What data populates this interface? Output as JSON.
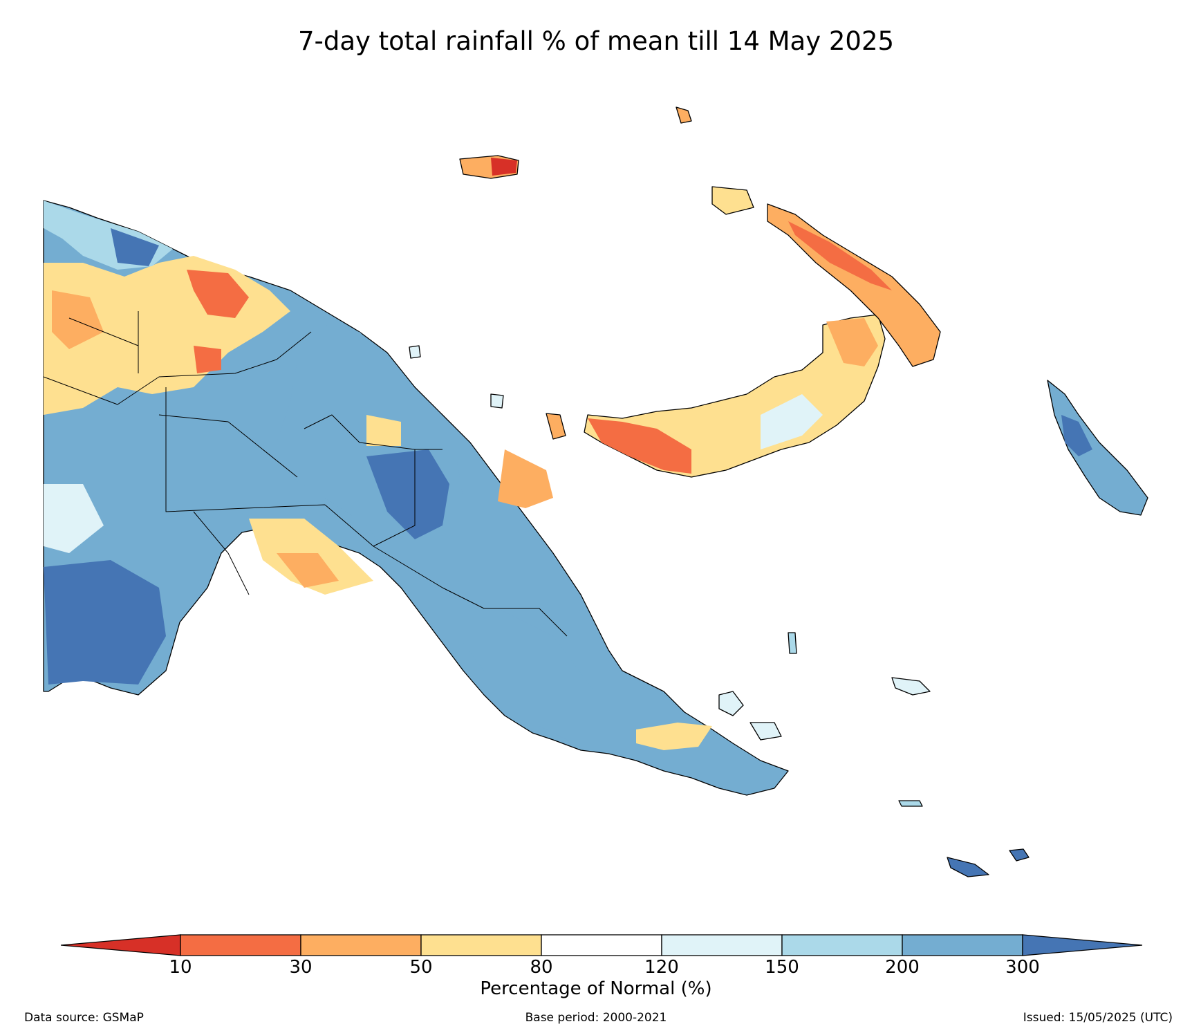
{
  "title": "7-day total rainfall % of mean till 14 May 2025",
  "colorbar": {
    "label": "Percentage of Normal (%)",
    "ticks": [
      "10",
      "30",
      "50",
      "80",
      "120",
      "150",
      "200",
      "300"
    ],
    "colors": {
      "below_10": "#d73027",
      "10_30": "#f46d43",
      "30_50": "#fdae61",
      "50_80": "#fee090",
      "80_120": "#ffffff",
      "120_150": "#e0f3f8",
      "150_200": "#abd9e9",
      "200_300": "#74add1",
      "above_300": "#4575b4"
    }
  },
  "footer": {
    "source": "Data source: GSMaP",
    "base_period": "Base period: 2000-2021",
    "issued": "Issued: 15/05/2025 (UTC)"
  }
}
